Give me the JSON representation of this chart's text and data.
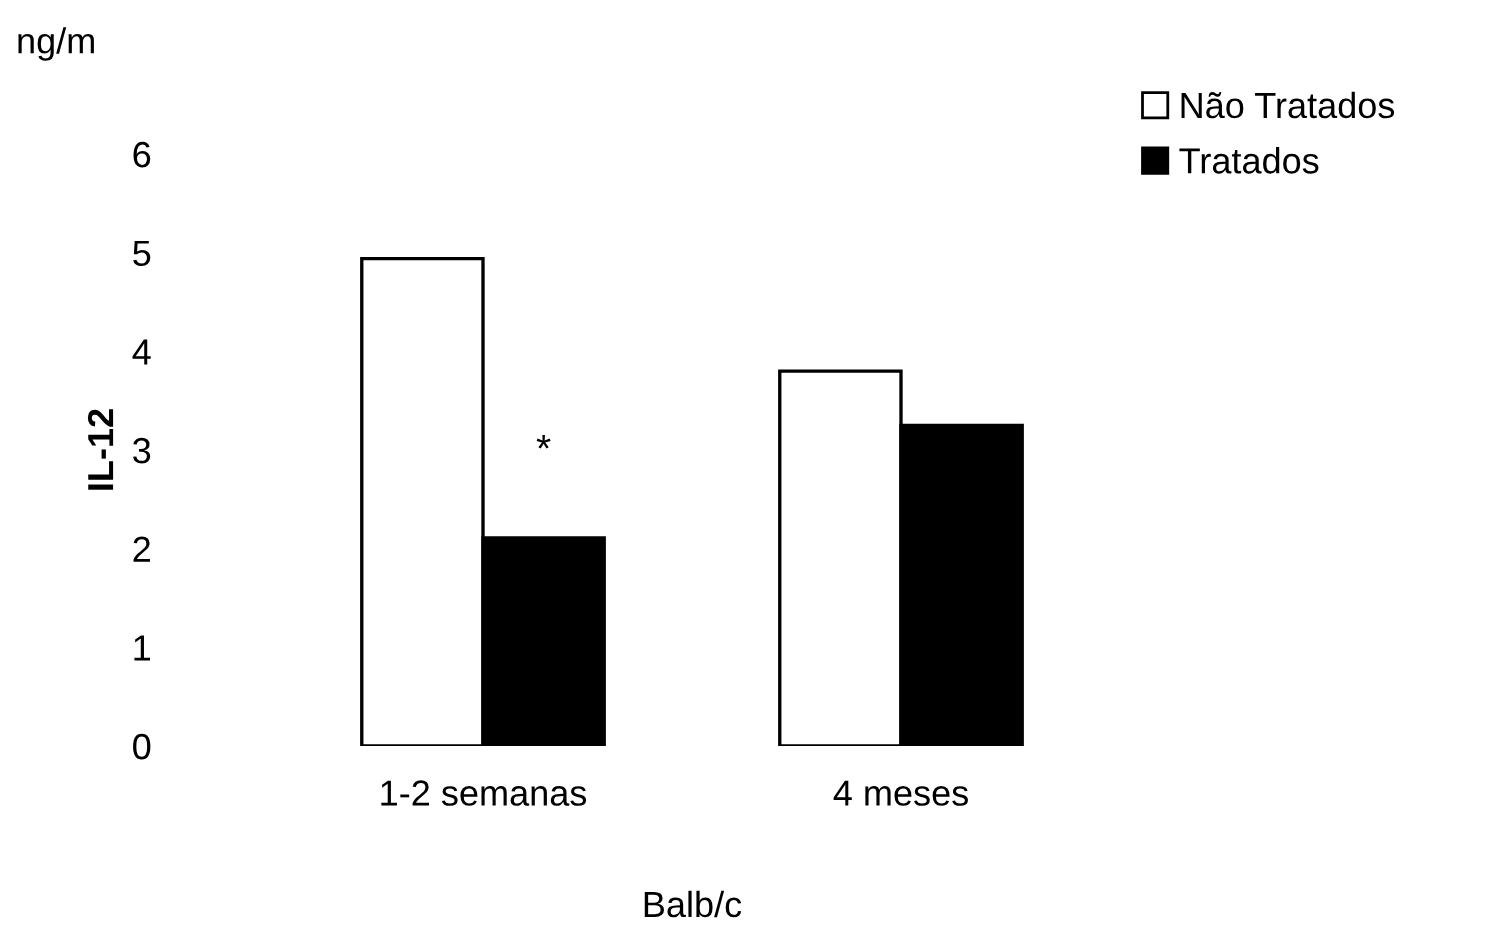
{
  "chart_data": {
    "type": "bar",
    "categories": [
      "1-2 semanas",
      "4 meses"
    ],
    "series": [
      {
        "name": "Não Tratados",
        "color": "#ffffff",
        "values": [
          4.94,
          3.8
        ]
      },
      {
        "name": "Tratados",
        "color": "#000000",
        "values": [
          2.11,
          3.25
        ]
      }
    ],
    "ylabel": "IL-12",
    "xlabel": "Balb/c",
    "ylim": [
      0,
      6
    ],
    "yticks": [
      0,
      1,
      2,
      3,
      4,
      5,
      6
    ],
    "annotations": [
      "ng/m",
      {
        "text": "*",
        "x": "1-2 semanas",
        "y": 2.8
      }
    ],
    "legend": "top right",
    "grid": false
  }
}
